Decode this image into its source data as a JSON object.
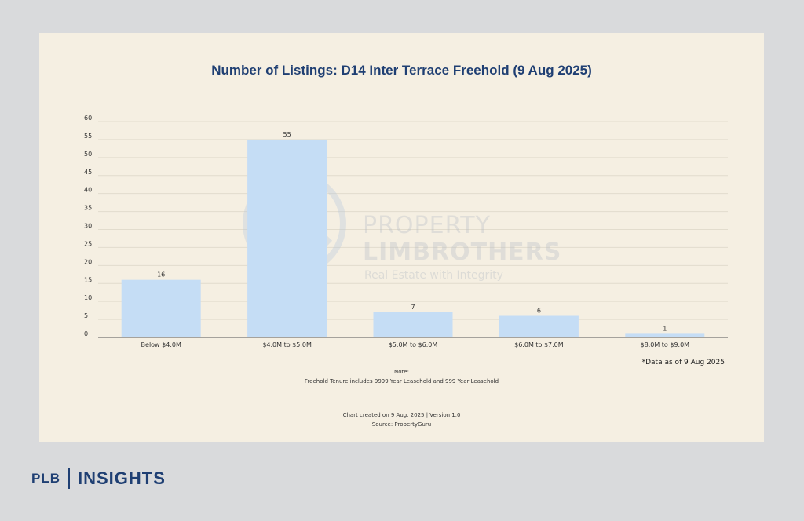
{
  "chart_data": {
    "type": "bar",
    "title": "Number of Listings: D14 Inter Terrace Freehold (9 Aug 2025)",
    "categories": [
      "Below $4.0M",
      "$4.0M to $5.0M",
      "$5.0M to $6.0M",
      "$6.0M to $7.0M",
      "$8.0M to $9.0M"
    ],
    "values": [
      16,
      55,
      7,
      6,
      1
    ],
    "ylim": [
      0,
      60
    ],
    "yticks": [
      0,
      5,
      10,
      15,
      20,
      25,
      30,
      35,
      40,
      45,
      50,
      55,
      60
    ],
    "bar_color": "#c5ddf5",
    "grid": true,
    "xlabel": "",
    "ylabel": ""
  },
  "watermark": {
    "line1": "PROPERTY",
    "line2": "LIMBROTHERS",
    "line3": "Real Estate with Integrity"
  },
  "footnotes": {
    "as_of": "*Data as of 9 Aug 2025",
    "note_title": "Note:",
    "note_text": "Freehold Tenure includes 9999 Year Leasehold and 999 Year Leasehold",
    "created": "Chart created on 9 Aug, 2025 | Version 1.0",
    "source": "Source: PropertyGuru"
  },
  "branding": {
    "left": "PLB",
    "right": "INSIGHTS",
    "color": "#1f3f73"
  }
}
